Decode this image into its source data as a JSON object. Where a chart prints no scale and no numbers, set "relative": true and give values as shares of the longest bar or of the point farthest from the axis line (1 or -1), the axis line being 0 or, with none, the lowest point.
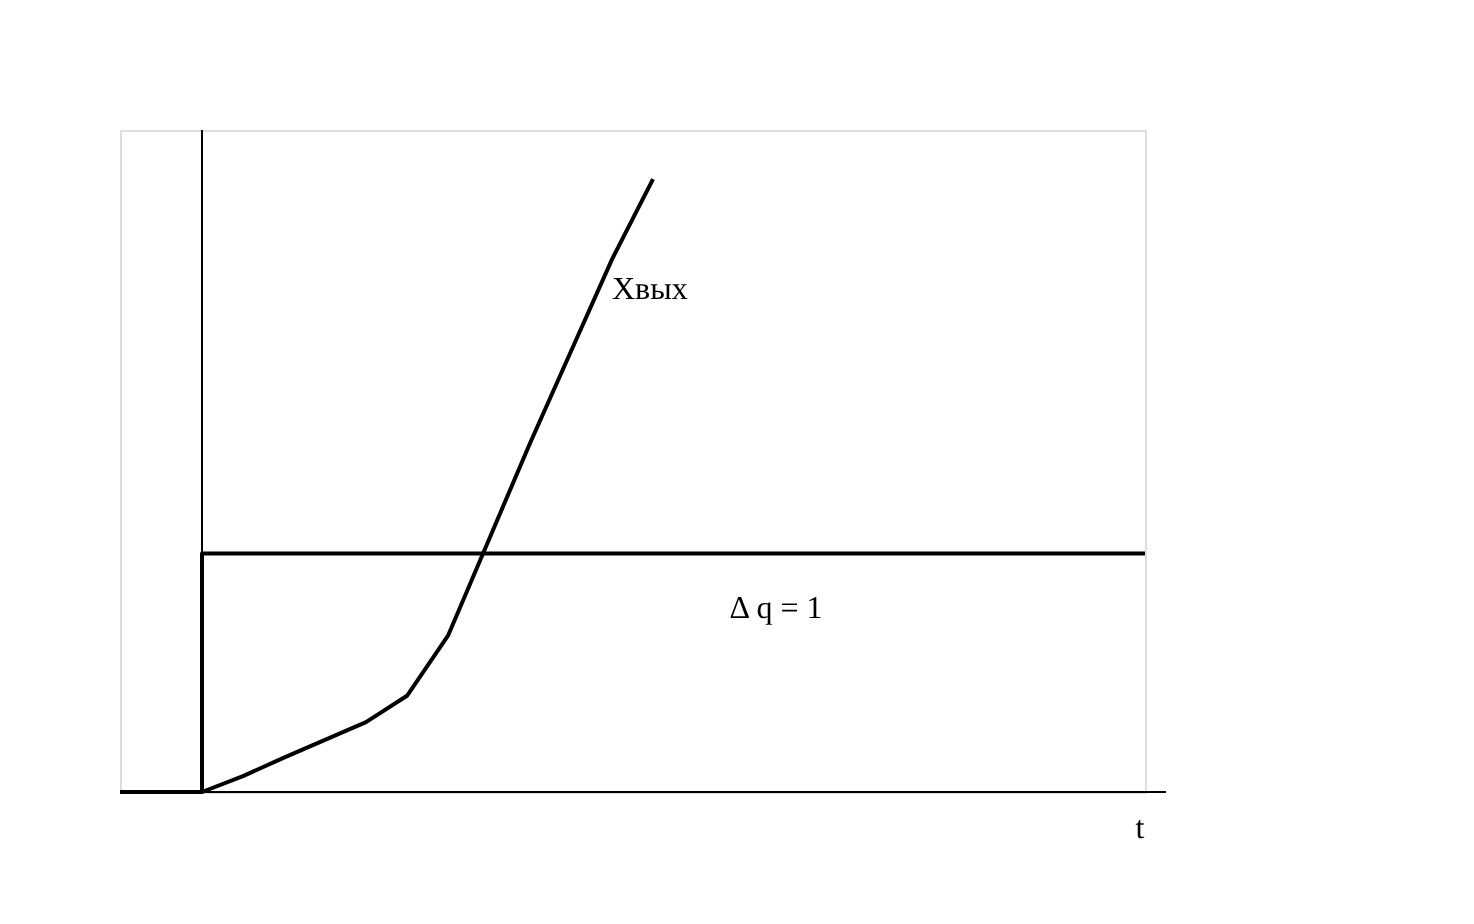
{
  "chart_data": {
    "type": "line",
    "relative": true,
    "xlabel": "t",
    "tick_labels": false,
    "grid": false,
    "marker": "none",
    "line_style": "solid",
    "categories": [
      null,
      null,
      null,
      null,
      null,
      null,
      null,
      null,
      null,
      null,
      null,
      null,
      null,
      null,
      null,
      null,
      null,
      null,
      null,
      null,
      null,
      null,
      null,
      null,
      null,
      null
    ],
    "series": [
      {
        "name": "Xвых",
        "color": "#000000",
        "values": [
          null,
          null,
          0,
          0.026,
          0.056,
          0.085,
          0.114,
          0.157,
          0.255,
          0.412,
          0.569,
          0.719,
          0.869,
          1,
          null,
          null,
          null,
          null,
          null,
          null,
          null,
          null,
          null,
          null,
          null,
          null
        ]
      },
      {
        "name": "Δ q = 1",
        "type": "step",
        "color": "#000000",
        "values": [
          0,
          0,
          0.389,
          0.389,
          0.389,
          0.389,
          0.389,
          0.389,
          0.389,
          0.389,
          0.389,
          0.389,
          0.389,
          0.389,
          0.389,
          0.389,
          0.389,
          0.389,
          0.389,
          0.389,
          0.389,
          0.389,
          0.389,
          0.389,
          0.389,
          0.389
        ]
      }
    ]
  }
}
